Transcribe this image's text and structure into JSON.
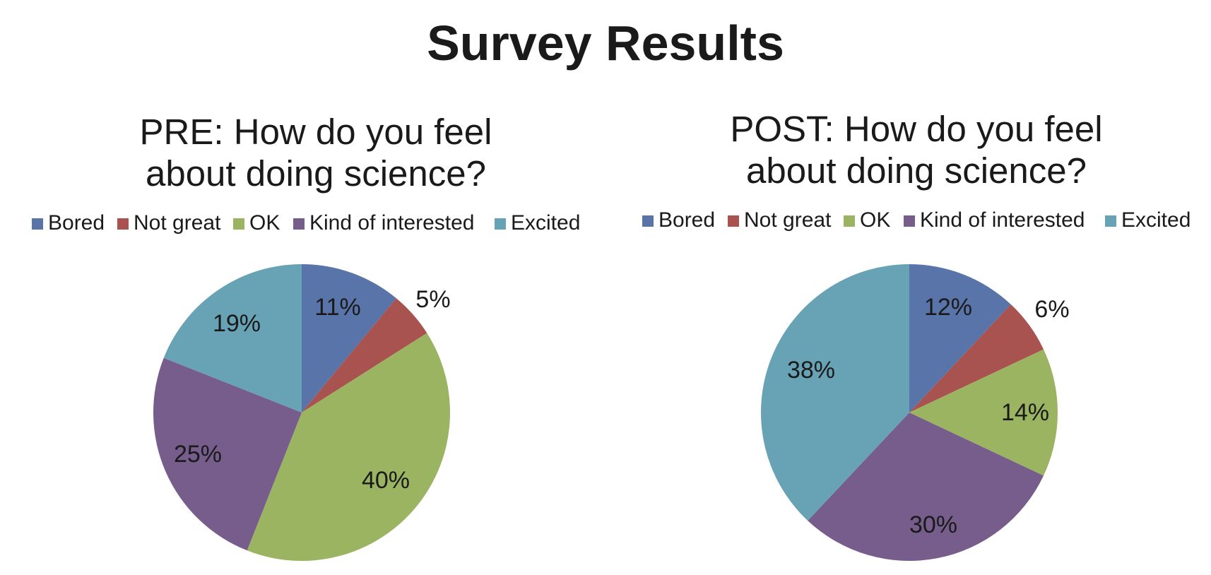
{
  "page": {
    "title": "Survey Results"
  },
  "colors": {
    "Bored": "#5874a8",
    "Not great": "#a85350",
    "OK": "#9bb461",
    "Kind of interested": "#765d8b",
    "Excited": "#68a2b5"
  },
  "chart_data": [
    {
      "type": "pie",
      "title": "PRE: How do you feel about doing science?",
      "title_lines": [
        "PRE: How do you feel",
        "about doing science?"
      ],
      "categories": [
        "Bored",
        "Not great",
        "OK",
        "Kind of interested",
        "Excited"
      ],
      "values": [
        11,
        5,
        40,
        25,
        19
      ],
      "labels": [
        "11%",
        "5%",
        "40%",
        "25%",
        "19%"
      ],
      "legend_position": "top",
      "start_angle": "12 o'clock, clockwise"
    },
    {
      "type": "pie",
      "title": "POST: How do you feel about doing science?",
      "title_lines": [
        "POST: How do you feel",
        "about doing science?"
      ],
      "categories": [
        "Bored",
        "Not great",
        "OK",
        "Kind of interested",
        "Excited"
      ],
      "values": [
        12,
        6,
        14,
        30,
        38
      ],
      "labels": [
        "12%",
        "6%",
        "14%",
        "30%",
        "38%"
      ],
      "legend_position": "top",
      "start_angle": "12 o'clock, clockwise"
    }
  ]
}
